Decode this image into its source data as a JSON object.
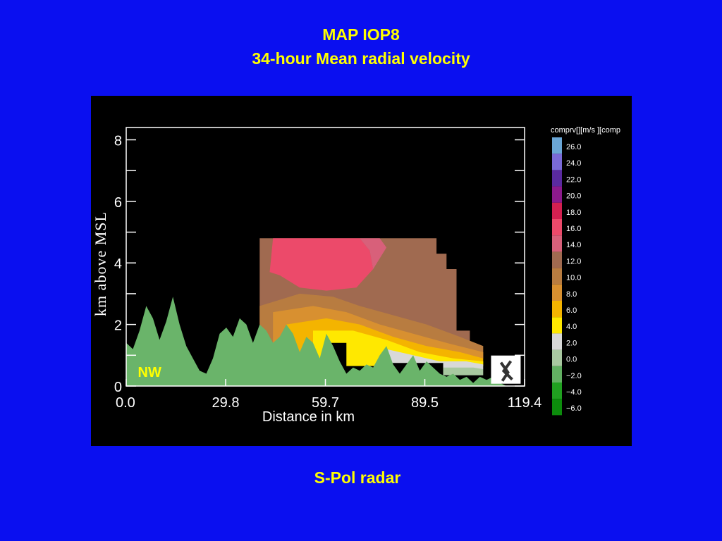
{
  "slide": {
    "title_line1": "MAP IOP8",
    "title_line2": "34-hour Mean radial velocity",
    "caption": "S-Pol radar",
    "background_color": "#0a0ff0",
    "title_color": "#ffff00"
  },
  "chart_data": {
    "type": "heatmap",
    "xlabel": "Distance in km",
    "ylabel": "km  above MSL",
    "xlim": [
      0.0,
      119.4
    ],
    "ylim": [
      0,
      8.4
    ],
    "x_ticks": [
      "0.0",
      "29.8",
      "59.7",
      "89.5",
      "119.4"
    ],
    "y_ticks": [
      "0",
      "2",
      "4",
      "6",
      "8"
    ],
    "annotation": "NW",
    "colorbar": {
      "title": "comprv[][m/s  ][comp",
      "levels": [
        {
          "label": "26.0",
          "color": "#6aa6d6"
        },
        {
          "label": "24.0",
          "color": "#7a6ad8"
        },
        {
          "label": "22.0",
          "color": "#5a2aa0"
        },
        {
          "label": "20.0",
          "color": "#8c1a8c"
        },
        {
          "label": "18.0",
          "color": "#d42050"
        },
        {
          "label": "16.0",
          "color": "#ec4a6a"
        },
        {
          "label": "14.0",
          "color": "#d8607a"
        },
        {
          "label": "12.0",
          "color": "#a06a50"
        },
        {
          "label": "10.0",
          "color": "#b87c40"
        },
        {
          "label": "8.0",
          "color": "#d89030"
        },
        {
          "label": "6.0",
          "color": "#f4b400"
        },
        {
          "label": "4.0",
          "color": "#ffe800"
        },
        {
          "label": "2.0",
          "color": "#d8d8d8"
        },
        {
          "label": "0.0",
          "color": "#a8c8a0"
        },
        {
          "label": "−2.0",
          "color": "#62b062"
        },
        {
          "label": "−4.0",
          "color": "#20a020"
        },
        {
          "label": "−6.0",
          "color": "#0c8c0c"
        }
      ]
    },
    "terrain_color": "#6ab46a",
    "terrain_km": [
      [
        0,
        1.4
      ],
      [
        2,
        1.2
      ],
      [
        4,
        1.8
      ],
      [
        6,
        2.6
      ],
      [
        8,
        2.2
      ],
      [
        10,
        1.5
      ],
      [
        12,
        2.1
      ],
      [
        14,
        2.9
      ],
      [
        16,
        2.0
      ],
      [
        18,
        1.3
      ],
      [
        20,
        0.9
      ],
      [
        22,
        0.5
      ],
      [
        24,
        0.4
      ],
      [
        26,
        0.9
      ],
      [
        28,
        1.7
      ],
      [
        30,
        1.9
      ],
      [
        32,
        1.6
      ],
      [
        34,
        2.2
      ],
      [
        36,
        2.0
      ],
      [
        38,
        1.4
      ],
      [
        40,
        2.0
      ],
      [
        42,
        1.8
      ],
      [
        44,
        1.4
      ],
      [
        46,
        1.6
      ],
      [
        48,
        2.0
      ],
      [
        50,
        1.7
      ],
      [
        52,
        1.1
      ],
      [
        54,
        1.6
      ],
      [
        56,
        1.4
      ],
      [
        58,
        0.9
      ],
      [
        60,
        1.7
      ],
      [
        62,
        1.3
      ],
      [
        64,
        0.8
      ],
      [
        66,
        0.4
      ],
      [
        68,
        0.6
      ],
      [
        70,
        0.5
      ],
      [
        72,
        0.7
      ],
      [
        74,
        0.6
      ],
      [
        76,
        1.0
      ],
      [
        78,
        1.3
      ],
      [
        80,
        0.7
      ],
      [
        82,
        0.4
      ],
      [
        84,
        0.7
      ],
      [
        86,
        1.0
      ],
      [
        88,
        0.5
      ],
      [
        90,
        0.8
      ],
      [
        92,
        0.6
      ],
      [
        94,
        0.4
      ],
      [
        96,
        0.3
      ],
      [
        98,
        0.4
      ],
      [
        100,
        0.2
      ],
      [
        102,
        0.3
      ],
      [
        104,
        0.1
      ],
      [
        106,
        0.3
      ],
      [
        108,
        0.2
      ],
      [
        110,
        0.3
      ],
      [
        112,
        0.1
      ],
      [
        114,
        0.0
      ]
    ],
    "velocity_bands": [
      {
        "color": "#a06a50",
        "polygon": [
          [
            40,
            4.8
          ],
          [
            93,
            4.8
          ],
          [
            93,
            4.3
          ],
          [
            96,
            4.3
          ],
          [
            96,
            3.8
          ],
          [
            99,
            3.8
          ],
          [
            99,
            1.8
          ],
          [
            103,
            1.8
          ],
          [
            103,
            1.2
          ],
          [
            40,
            1.2
          ]
        ]
      },
      {
        "color": "#ec4a6a",
        "polygon": [
          [
            44,
            4.8
          ],
          [
            70,
            4.8
          ],
          [
            73,
            4.4
          ],
          [
            74,
            3.8
          ],
          [
            69,
            3.2
          ],
          [
            60,
            3.1
          ],
          [
            52,
            3.2
          ],
          [
            46,
            3.6
          ],
          [
            43,
            3.7
          ]
        ]
      },
      {
        "color": "#d8607a",
        "polygon": [
          [
            70,
            4.8
          ],
          [
            76,
            4.8
          ],
          [
            78,
            4.5
          ],
          [
            74,
            3.8
          ],
          [
            73,
            4.4
          ]
        ]
      },
      {
        "color": "#b87c40",
        "polygon": [
          [
            40,
            2.6
          ],
          [
            52,
            3.0
          ],
          [
            62,
            2.9
          ],
          [
            70,
            2.6
          ],
          [
            80,
            2.3
          ],
          [
            90,
            2.0
          ],
          [
            100,
            1.6
          ],
          [
            107,
            1.3
          ],
          [
            107,
            0.9
          ],
          [
            40,
            0.9
          ]
        ]
      },
      {
        "color": "#d89030",
        "polygon": [
          [
            44,
            2.4
          ],
          [
            56,
            2.6
          ],
          [
            66,
            2.4
          ],
          [
            76,
            2.0
          ],
          [
            86,
            1.7
          ],
          [
            96,
            1.4
          ],
          [
            107,
            1.1
          ],
          [
            107,
            0.9
          ],
          [
            44,
            0.9
          ]
        ]
      },
      {
        "color": "#f4b400",
        "polygon": [
          [
            48,
            2.0
          ],
          [
            60,
            2.2
          ],
          [
            70,
            2.0
          ],
          [
            80,
            1.6
          ],
          [
            90,
            1.3
          ],
          [
            100,
            1.1
          ],
          [
            107,
            0.9
          ],
          [
            107,
            0.7
          ],
          [
            48,
            0.7
          ]
        ]
      },
      {
        "color": "#ffe800",
        "polygon": [
          [
            56,
            1.8
          ],
          [
            68,
            1.8
          ],
          [
            78,
            1.5
          ],
          [
            88,
            1.1
          ],
          [
            98,
            0.9
          ],
          [
            107,
            0.8
          ],
          [
            107,
            0.65
          ],
          [
            56,
            0.65
          ]
        ]
      },
      {
        "color": "#d8d8d8",
        "polygon": [
          [
            78,
            1.2
          ],
          [
            86,
            1.0
          ],
          [
            94,
            0.8
          ],
          [
            102,
            0.8
          ],
          [
            107,
            0.7
          ],
          [
            107,
            0.55
          ],
          [
            78,
            0.55
          ]
        ]
      },
      {
        "color": "#a8c8a0",
        "polygon": [
          [
            95,
            0.6
          ],
          [
            104,
            0.6
          ],
          [
            107,
            0.55
          ],
          [
            107,
            0.35
          ],
          [
            95,
            0.35
          ]
        ]
      }
    ],
    "data_gaps": [
      [
        [
          31,
          2.0
        ],
        [
          40,
          2.0
        ],
        [
          40,
          1.2
        ],
        [
          31,
          1.2
        ]
      ],
      [
        [
          61,
          1.4
        ],
        [
          66,
          1.4
        ],
        [
          66,
          0.5
        ],
        [
          61,
          0.5
        ]
      ],
      [
        [
          78,
          0.75
        ],
        [
          95,
          0.75
        ],
        [
          95,
          0.2
        ],
        [
          78,
          0.2
        ]
      ]
    ],
    "radar_marker": [
      114,
      0.35
    ]
  }
}
